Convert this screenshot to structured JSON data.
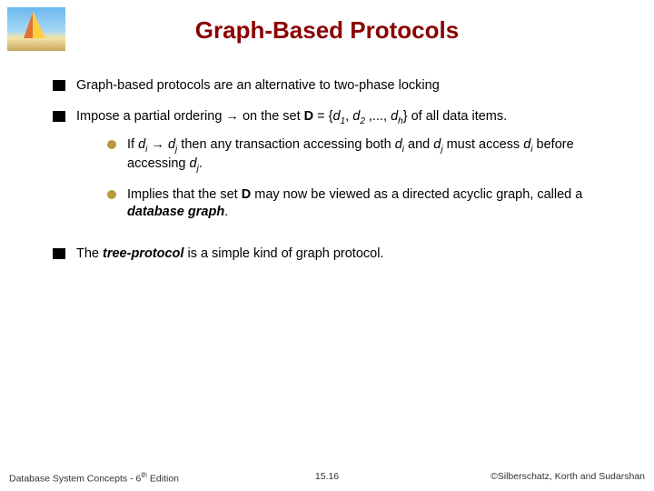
{
  "title": "Graph-Based Protocols",
  "bullets": {
    "b1": "Graph-based protocols are an alternative to two-phase locking",
    "b2_pre": "Impose a partial ordering → on the set ",
    "b2_D": "D",
    "b2_eq": " = {",
    "b2_d": "d",
    "b2_s1": "1",
    "b2_c1": ", ",
    "b2_s2": "2",
    "b2_c2": " ,..., ",
    "b2_sh": "h",
    "b2_post": "} of all data items.",
    "s1_pre": "If ",
    "s1_di": "d",
    "s1_i": "i",
    "s1_arrow": " → ",
    "s1_dj": "d",
    "s1_j": "j",
    "s1_mid": " then any transaction accessing both ",
    "s1_and": " and ",
    "s1_must": " must access ",
    "s1_before": " before accessing ",
    "s1_dot": ".",
    "s2_pre": "Implies that the set ",
    "s2_post": " may now be viewed as a directed acyclic graph, called a ",
    "s2_dbg": "database graph",
    "b3_pre": "The ",
    "b3_tp": "tree-protocol",
    "b3_post": " is a simple kind of graph protocol."
  },
  "footer": {
    "left_a": "Database System Concepts - 6",
    "left_th": "th",
    "left_b": " Edition",
    "mid": "15.16",
    "right": "©Silberschatz, Korth and Sudarshan"
  },
  "colors": {
    "title": "#8b0000",
    "square_bullet": "#000000",
    "round_bullet": "#b89a3a",
    "background": "#ffffff"
  }
}
